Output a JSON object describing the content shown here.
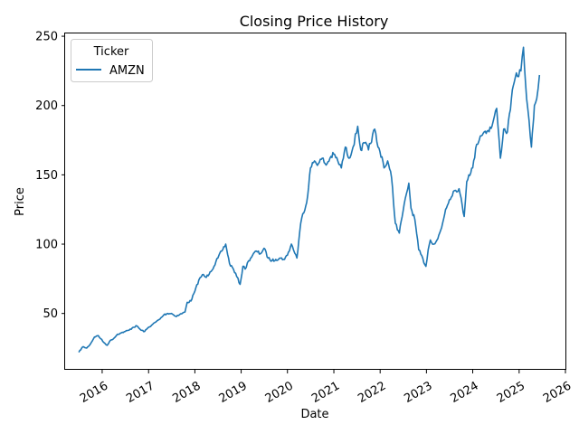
{
  "chart_data": {
    "type": "line",
    "title": "Closing Price History",
    "xlabel": "Date",
    "ylabel": "Price",
    "xlim": [
      "2015-03-15",
      "2026-01-01"
    ],
    "ylim": [
      10,
      252
    ],
    "x_ticks": [
      "2016",
      "2017",
      "2018",
      "2019",
      "2020",
      "2021",
      "2022",
      "2023",
      "2024",
      "2025",
      "2026"
    ],
    "y_ticks": [
      50,
      100,
      150,
      200,
      250
    ],
    "grid": false,
    "legend": {
      "title": "Ticker",
      "position": "top-left",
      "entries": [
        "AMZN"
      ]
    },
    "series": [
      {
        "name": "AMZN",
        "color": "#1f77b4",
        "x": [
          "2015-07-01",
          "2015-08-01",
          "2015-09-01",
          "2015-10-01",
          "2015-11-01",
          "2015-12-01",
          "2016-01-15",
          "2016-02-10",
          "2016-03-01",
          "2016-04-01",
          "2016-05-01",
          "2016-06-01",
          "2016-07-01",
          "2016-08-01",
          "2016-09-01",
          "2016-10-01",
          "2016-11-01",
          "2016-12-01",
          "2017-01-01",
          "2017-02-01",
          "2017-03-01",
          "2017-04-01",
          "2017-05-01",
          "2017-06-01",
          "2017-07-01",
          "2017-08-01",
          "2017-09-01",
          "2017-10-15",
          "2017-11-01",
          "2017-12-01",
          "2018-01-01",
          "2018-02-01",
          "2018-03-01",
          "2018-04-01",
          "2018-05-01",
          "2018-06-01",
          "2018-07-01",
          "2018-08-01",
          "2018-09-01",
          "2018-10-01",
          "2018-11-01",
          "2018-12-24",
          "2019-01-15",
          "2019-02-01",
          "2019-03-01",
          "2019-04-01",
          "2019-05-01",
          "2019-06-01",
          "2019-07-01",
          "2019-08-01",
          "2019-09-01",
          "2019-10-01",
          "2019-11-01",
          "2019-12-01",
          "2020-01-01",
          "2020-02-01",
          "2020-03-16",
          "2020-04-15",
          "2020-05-01",
          "2020-06-01",
          "2020-07-01",
          "2020-08-01",
          "2020-09-01",
          "2020-10-01",
          "2020-11-01",
          "2020-12-01",
          "2021-01-01",
          "2021-02-01",
          "2021-03-01",
          "2021-04-01",
          "2021-05-01",
          "2021-06-01",
          "2021-07-08",
          "2021-08-01",
          "2021-09-01",
          "2021-10-01",
          "2021-11-19",
          "2021-12-15",
          "2022-01-15",
          "2022-02-01",
          "2022-03-01",
          "2022-04-01",
          "2022-05-01",
          "2022-06-01",
          "2022-07-01",
          "2022-08-15",
          "2022-09-01",
          "2022-10-01",
          "2022-11-01",
          "2022-12-28",
          "2023-01-15",
          "2023-02-01",
          "2023-03-01",
          "2023-04-01",
          "2023-05-01",
          "2023-06-01",
          "2023-07-01",
          "2023-08-01",
          "2023-09-15",
          "2023-10-26",
          "2023-11-15",
          "2023-12-01",
          "2024-01-01",
          "2024-02-01",
          "2024-03-01",
          "2024-04-01",
          "2024-05-01",
          "2024-06-01",
          "2024-07-08",
          "2024-08-06",
          "2024-09-01",
          "2024-10-01",
          "2024-11-01",
          "2024-12-01",
          "2025-01-15",
          "2025-02-04",
          "2025-03-01",
          "2025-04-08",
          "2025-04-20",
          "2025-05-01",
          "2025-05-20",
          "2025-06-10"
        ],
        "y": [
          22,
          26,
          25,
          28,
          33,
          34,
          29,
          27,
          30,
          32,
          35,
          36,
          37,
          38,
          40,
          41,
          38,
          37,
          40,
          42,
          44,
          46,
          49,
          50,
          50,
          48,
          49,
          51,
          58,
          59,
          66,
          74,
          78,
          76,
          80,
          84,
          90,
          95,
          100,
          86,
          82,
          71,
          84,
          82,
          88,
          92,
          95,
          93,
          97,
          90,
          88,
          89,
          90,
          89,
          92,
          100,
          90,
          115,
          122,
          130,
          155,
          160,
          158,
          162,
          157,
          162,
          165,
          160,
          155,
          170,
          162,
          170,
          185,
          168,
          173,
          168,
          183,
          170,
          163,
          155,
          160,
          148,
          115,
          108,
          124,
          144,
          126,
          118,
          96,
          84,
          96,
          103,
          100,
          104,
          112,
          125,
          132,
          138,
          140,
          120,
          145,
          150,
          155,
          172,
          178,
          181,
          182,
          185,
          198,
          162,
          183,
          181,
          205,
          220,
          225,
          242,
          205,
          170,
          185,
          200,
          205,
          222
        ]
      }
    ]
  }
}
